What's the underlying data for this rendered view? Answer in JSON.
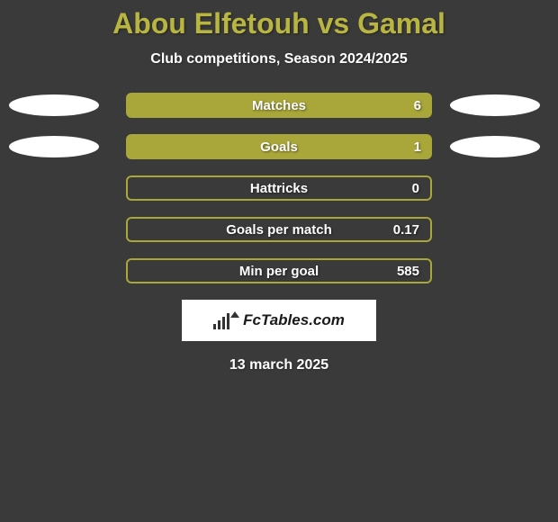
{
  "background_color": "#3a3a3a",
  "title": {
    "text": "Abou Elfetouh vs Gamal",
    "color": "#b9b541",
    "fontsize": 32
  },
  "subtitle": {
    "text": "Club competitions, Season 2024/2025",
    "color": "#ffffff",
    "fontsize": 16
  },
  "bars": {
    "filled_color": "#a9a63a",
    "outline_color": "#a9a63a",
    "outline_bg": "transparent",
    "border_width": 2,
    "label_color": "#ffffff",
    "value_color": "#ffffff",
    "fontsize": 15
  },
  "rows": [
    {
      "label": "Matches",
      "value": "6",
      "filled": true,
      "show_ellipses": true
    },
    {
      "label": "Goals",
      "value": "1",
      "filled": true,
      "show_ellipses": true
    },
    {
      "label": "Hattricks",
      "value": "0",
      "filled": false,
      "show_ellipses": false
    },
    {
      "label": "Goals per match",
      "value": "0.17",
      "filled": false,
      "show_ellipses": false
    },
    {
      "label": "Min per goal",
      "value": "585",
      "filled": false,
      "show_ellipses": false
    }
  ],
  "ellipse": {
    "color": "#ffffff",
    "width": 100,
    "height": 24
  },
  "logo": {
    "text": "FcTables.com",
    "bg": "#ffffff",
    "text_color": "#1a1a1a"
  },
  "date": {
    "text": "13 march 2025",
    "color": "#ffffff",
    "fontsize": 16
  }
}
